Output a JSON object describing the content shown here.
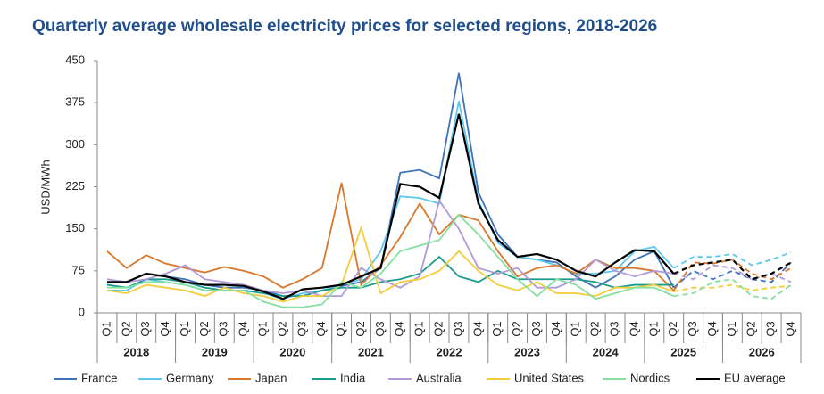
{
  "chart_data": {
    "type": "line",
    "title": "Quarterly average wholesale electricity prices for selected regions, 2018-2026",
    "y_label": "USD/MWh",
    "categories": [
      "Q1",
      "Q2",
      "Q3",
      "Q4",
      "Q1",
      "Q2",
      "Q3",
      "Q4",
      "Q1",
      "Q2",
      "Q3",
      "Q4",
      "Q1",
      "Q2",
      "Q3",
      "Q4",
      "Q1",
      "Q2",
      "Q3",
      "Q4",
      "Q1",
      "Q2",
      "Q3",
      "Q4",
      "Q1",
      "Q2",
      "Q3",
      "Q4",
      "Q1",
      "Q2",
      "Q3",
      "Q4",
      "Q1",
      "Q2",
      "Q3",
      "Q4"
    ],
    "x_groups": [
      "2018",
      "2019",
      "2020",
      "2021",
      "2022",
      "2023",
      "2024",
      "2025",
      "2026"
    ],
    "dashed_from": 29,
    "ylim": [
      0,
      450
    ],
    "yticks": [
      0,
      75,
      150,
      225,
      300,
      375,
      450
    ],
    "grid": false,
    "legend": "bottom",
    "series": [
      {
        "name": "France",
        "color": "#3f72b8",
        "values": [
          55,
          55,
          70,
          65,
          60,
          50,
          45,
          45,
          40,
          30,
          30,
          40,
          48,
          55,
          80,
          250,
          255,
          240,
          428,
          215,
          140,
          100,
          95,
          90,
          65,
          45,
          65,
          95,
          110,
          45,
          75,
          60,
          75,
          60,
          55,
          90
        ]
      },
      {
        "name": "Germany",
        "color": "#5cc8f0",
        "values": [
          40,
          40,
          60,
          55,
          50,
          40,
          40,
          40,
          35,
          25,
          35,
          40,
          50,
          60,
          110,
          208,
          205,
          195,
          378,
          200,
          125,
          100,
          95,
          85,
          70,
          70,
          75,
          110,
          118,
          80,
          100,
          100,
          105,
          85,
          95,
          108
        ]
      },
      {
        "name": "Japan",
        "color": "#d9772a",
        "values": [
          110,
          80,
          103,
          88,
          80,
          72,
          82,
          75,
          65,
          45,
          60,
          80,
          232,
          50,
          85,
          135,
          195,
          140,
          175,
          165,
          110,
          65,
          80,
          85,
          70,
          95,
          80,
          80,
          75,
          40,
          90,
          88,
          95,
          70,
          60,
          80
        ]
      },
      {
        "name": "India",
        "color": "#1a9c8c",
        "values": [
          50,
          45,
          60,
          60,
          55,
          45,
          40,
          40,
          35,
          30,
          30,
          40,
          45,
          45,
          55,
          60,
          70,
          100,
          65,
          55,
          75,
          60,
          60,
          60,
          60,
          55,
          45,
          50,
          50,
          50,
          null,
          null,
          null,
          null,
          null,
          null
        ]
      },
      {
        "name": "Australia",
        "color": "#b29ad8",
        "values": [
          60,
          55,
          60,
          70,
          85,
          60,
          55,
          50,
          40,
          35,
          40,
          30,
          30,
          80,
          60,
          45,
          65,
          200,
          150,
          80,
          70,
          80,
          45,
          45,
          60,
          95,
          75,
          65,
          75,
          70,
          60,
          85,
          80,
          60,
          70,
          55
        ]
      },
      {
        "name": "United States",
        "color": "#f5cc3c",
        "values": [
          40,
          35,
          50,
          45,
          40,
          30,
          45,
          35,
          30,
          20,
          30,
          30,
          50,
          152,
          35,
          55,
          60,
          75,
          110,
          75,
          50,
          40,
          55,
          35,
          35,
          30,
          45,
          45,
          50,
          38,
          45,
          45,
          50,
          40,
          45,
          48
        ]
      },
      {
        "name": "Nordics",
        "color": "#86e0a0",
        "values": [
          45,
          45,
          55,
          55,
          50,
          40,
          40,
          40,
          20,
          10,
          10,
          15,
          55,
          45,
          70,
          110,
          120,
          130,
          175,
          140,
          100,
          60,
          30,
          60,
          50,
          25,
          35,
          45,
          45,
          30,
          35,
          55,
          60,
          30,
          25,
          50
        ]
      },
      {
        "name": "EU average",
        "color": "#000000",
        "values": [
          55,
          55,
          70,
          65,
          55,
          50,
          50,
          48,
          38,
          25,
          42,
          45,
          50,
          65,
          80,
          230,
          225,
          205,
          355,
          195,
          130,
          100,
          105,
          95,
          75,
          65,
          90,
          112,
          110,
          70,
          85,
          90,
          95,
          60,
          70,
          90
        ]
      }
    ]
  }
}
